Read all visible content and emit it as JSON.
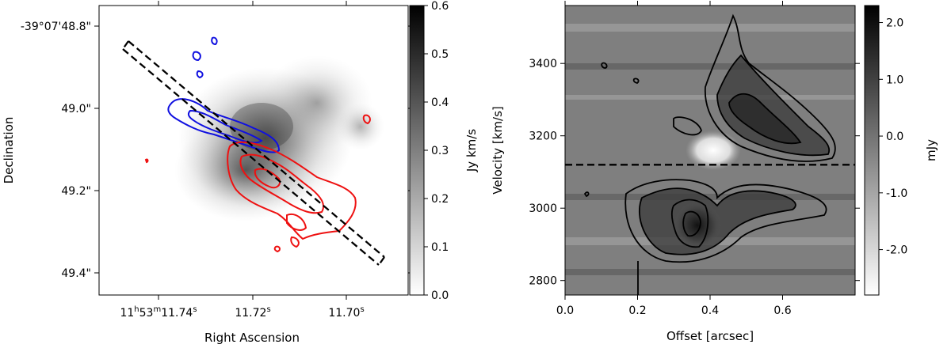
{
  "chart_data": [
    {
      "type": "heatmap",
      "title": "",
      "xlabel": "Right Ascension",
      "ylabel": "Declination",
      "x_ticks": [
        {
          "h": "11",
          "m": "53",
          "s": "11.74",
          "full": true
        },
        {
          "s": "11.72",
          "full": false
        },
        {
          "s": "11.70",
          "full": false
        }
      ],
      "y_ticks": [
        "-39°07'48.8\"",
        "49.0\"",
        "49.2\"",
        "49.4\""
      ],
      "colorbar": {
        "label": "Jy km/s",
        "ticks": [
          "0.0",
          "0.1",
          "0.2",
          "0.3",
          "0.4",
          "0.5",
          "0.6"
        ],
        "range": [
          0.0,
          0.6
        ]
      },
      "overlays": [
        {
          "name": "blue contours",
          "color": "#1010e0"
        },
        {
          "name": "red contours",
          "color": "#ee1111"
        },
        {
          "name": "slit",
          "style": "dashed",
          "color": "#000000"
        }
      ]
    },
    {
      "type": "heatmap",
      "title": "",
      "xlabel": "Offset [arcsec]",
      "ylabel": "Velocity [km/s]",
      "x_ticks": [
        "0.0",
        "0.2",
        "0.4",
        "0.6"
      ],
      "y_ticks": [
        "2800",
        "3000",
        "3200",
        "3400"
      ],
      "xlim": [
        0.0,
        0.8
      ],
      "ylim": [
        2760,
        3560
      ],
      "systemic_velocity_line": 3120,
      "colorbar": {
        "label": "mJy",
        "ticks": [
          "-2.0",
          "-1.0",
          "0.0",
          "1.0",
          "2.0"
        ],
        "range": [
          -2.8,
          2.3
        ]
      }
    }
  ]
}
